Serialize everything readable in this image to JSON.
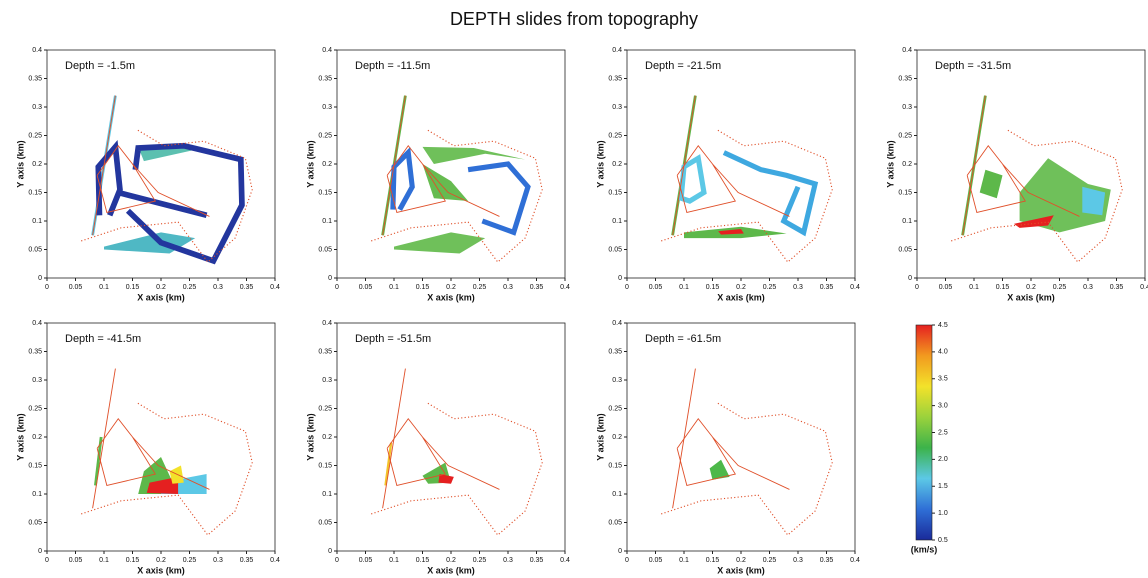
{
  "title": "DEPTH slides from topography",
  "chart_data": [
    {
      "type": "map",
      "annotation": "Depth = -1.5m",
      "xlabel": "X axis (km)",
      "ylabel": "Y axis (km)",
      "xlim": [
        0,
        0.4
      ],
      "ylim": [
        0,
        0.4
      ],
      "xticks": [
        0,
        0.05,
        0.1,
        0.15,
        0.2,
        0.25,
        0.3,
        0.35,
        0.4
      ],
      "yticks": [
        0,
        0.05,
        0.1,
        0.15,
        0.2,
        0.25,
        0.3,
        0.35,
        0.4
      ]
    },
    {
      "type": "map",
      "annotation": "Depth = -11.5m",
      "xlabel": "X axis (km)",
      "ylabel": "Y axis (km)",
      "xlim": [
        0,
        0.4
      ],
      "ylim": [
        0,
        0.4
      ],
      "xticks": [
        0,
        0.05,
        0.1,
        0.15,
        0.2,
        0.25,
        0.3,
        0.35,
        0.4
      ],
      "yticks": [
        0,
        0.05,
        0.1,
        0.15,
        0.2,
        0.25,
        0.3,
        0.35,
        0.4
      ]
    },
    {
      "type": "map",
      "annotation": "Depth = -21.5m",
      "xlabel": "X axis (km)",
      "ylabel": "Y axis (km)",
      "xlim": [
        0,
        0.4
      ],
      "ylim": [
        0,
        0.4
      ],
      "xticks": [
        0,
        0.05,
        0.1,
        0.15,
        0.2,
        0.25,
        0.3,
        0.35,
        0.4
      ],
      "yticks": [
        0,
        0.05,
        0.1,
        0.15,
        0.2,
        0.25,
        0.3,
        0.35,
        0.4
      ]
    },
    {
      "type": "map",
      "annotation": "Depth = -31.5m",
      "xlabel": "X axis (km)",
      "ylabel": "Y axis (km)",
      "xlim": [
        0,
        0.4
      ],
      "ylim": [
        0,
        0.4
      ],
      "xticks": [
        0,
        0.05,
        0.1,
        0.15,
        0.2,
        0.25,
        0.3,
        0.35,
        0.4
      ],
      "yticks": [
        0,
        0.05,
        0.1,
        0.15,
        0.2,
        0.25,
        0.3,
        0.35,
        0.4
      ]
    },
    {
      "type": "map",
      "annotation": "Depth = -41.5m",
      "xlabel": "X axis (km)",
      "ylabel": "Y axis (km)",
      "xlim": [
        0,
        0.4
      ],
      "ylim": [
        0,
        0.4
      ],
      "xticks": [
        0,
        0.05,
        0.1,
        0.15,
        0.2,
        0.25,
        0.3,
        0.35,
        0.4
      ],
      "yticks": [
        0,
        0.05,
        0.1,
        0.15,
        0.2,
        0.25,
        0.3,
        0.35,
        0.4
      ]
    },
    {
      "type": "map",
      "annotation": "Depth = -51.5m",
      "xlabel": "X axis (km)",
      "ylabel": "Y axis (km)",
      "xlim": [
        0,
        0.4
      ],
      "ylim": [
        0,
        0.4
      ],
      "xticks": [
        0,
        0.05,
        0.1,
        0.15,
        0.2,
        0.25,
        0.3,
        0.35,
        0.4
      ],
      "yticks": [
        0,
        0.05,
        0.1,
        0.15,
        0.2,
        0.25,
        0.3,
        0.35,
        0.4
      ]
    },
    {
      "type": "map",
      "annotation": "Depth = -61.5m",
      "xlabel": "X axis (km)",
      "ylabel": "Y axis (km)",
      "xlim": [
        0,
        0.4
      ],
      "ylim": [
        0,
        0.4
      ],
      "xticks": [
        0,
        0.05,
        0.1,
        0.15,
        0.2,
        0.25,
        0.3,
        0.35,
        0.4
      ],
      "yticks": [
        0,
        0.05,
        0.1,
        0.15,
        0.2,
        0.25,
        0.3,
        0.35,
        0.4
      ]
    }
  ],
  "colorbar": {
    "unit": "(km/s)",
    "lim": [
      0.5,
      4.5
    ],
    "ticks": [
      4.5,
      {
        "value": 4,
        "label": "4.0"
      },
      3.5,
      {
        "value": 3,
        "label": "3.0"
      },
      2.5,
      {
        "value": 2,
        "label": "2.0"
      },
      1.5,
      {
        "value": 1,
        "label": "1.0"
      },
      0.5
    ],
    "colors": [
      "#1a2a9a",
      "#2f6fd6",
      "#5cc8e6",
      "#3cb34a",
      "#9ad23c",
      "#f3e22a",
      "#f29a1f",
      "#e52020"
    ]
  }
}
